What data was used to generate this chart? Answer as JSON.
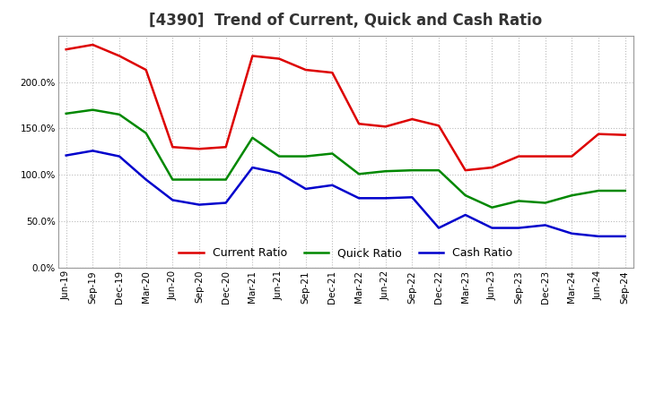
{
  "title": "[4390]  Trend of Current, Quick and Cash Ratio",
  "x_labels": [
    "Jun-19",
    "Sep-19",
    "Dec-19",
    "Mar-20",
    "Jun-20",
    "Sep-20",
    "Dec-20",
    "Mar-21",
    "Jun-21",
    "Sep-21",
    "Dec-21",
    "Mar-22",
    "Jun-22",
    "Sep-22",
    "Dec-22",
    "Mar-23",
    "Jun-23",
    "Sep-23",
    "Dec-23",
    "Mar-24",
    "Jun-24",
    "Sep-24"
  ],
  "current_ratio": [
    235,
    240,
    228,
    213,
    130,
    128,
    130,
    228,
    225,
    213,
    210,
    155,
    152,
    160,
    153,
    105,
    108,
    120,
    120,
    120,
    144,
    143
  ],
  "quick_ratio": [
    166,
    170,
    165,
    145,
    95,
    95,
    95,
    140,
    120,
    120,
    123,
    101,
    104,
    105,
    105,
    78,
    65,
    72,
    70,
    78,
    83,
    83
  ],
  "cash_ratio": [
    121,
    126,
    120,
    95,
    73,
    68,
    70,
    108,
    102,
    85,
    89,
    75,
    75,
    76,
    43,
    57,
    43,
    43,
    46,
    37,
    34,
    34
  ],
  "ylim": [
    0,
    250
  ],
  "yticks": [
    0,
    50,
    100,
    150,
    200
  ],
  "line_colors": {
    "current": "#dd0000",
    "quick": "#008800",
    "cash": "#0000cc"
  },
  "line_width": 1.8,
  "bg_color": "#ffffff",
  "plot_bg_color": "#ffffff",
  "grid_color": "#bbbbbb",
  "title_fontsize": 12,
  "tick_fontsize": 7.5,
  "legend_fontsize": 9
}
